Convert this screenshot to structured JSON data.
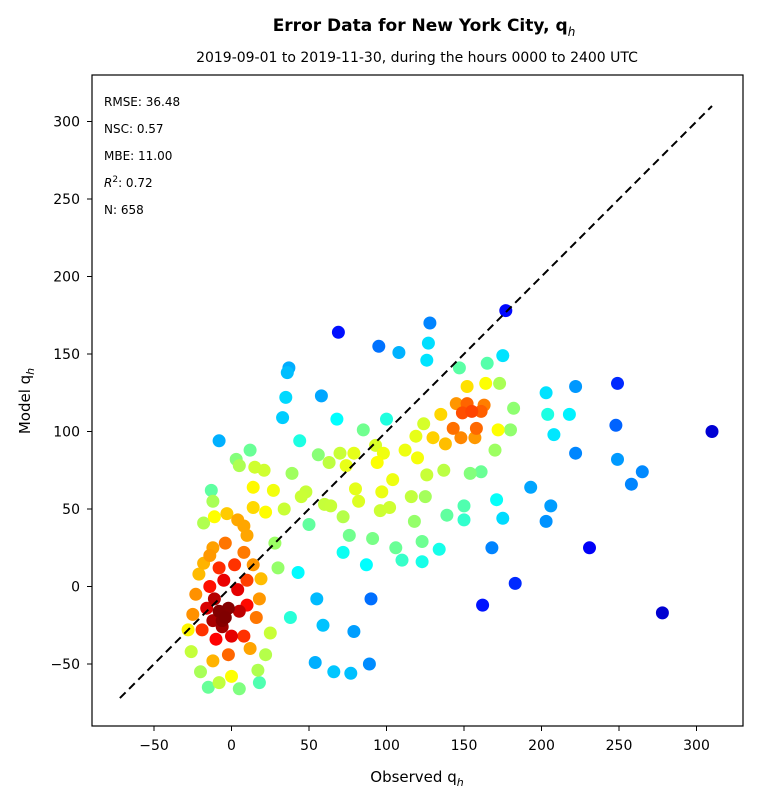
{
  "chart_data": {
    "type": "scatter",
    "title": "Error Data for New York City, q",
    "title_subscript": "h",
    "subtitle": "2019-09-01 to 2019-11-30, during the hours 0000 to 2400 UTC",
    "xlabel": "Observed q",
    "xlabel_subscript": "h",
    "ylabel": "Model q",
    "ylabel_subscript": "h",
    "xlim": [
      -90,
      330
    ],
    "ylim": [
      -90,
      330
    ],
    "x_ticks": [
      "−50",
      "0",
      "50",
      "100",
      "150",
      "200",
      "250",
      "300"
    ],
    "y_ticks": [
      "−50",
      "0",
      "50",
      "100",
      "150",
      "200",
      "250",
      "300"
    ],
    "reference_line": {
      "x": [
        -72,
        310
      ],
      "y": [
        -72,
        310
      ],
      "style": "dashed",
      "color": "#000000"
    },
    "stats": [
      {
        "label": "RMSE",
        "value": "36.48"
      },
      {
        "label": "NSC",
        "value": "0.57"
      },
      {
        "label": "MBE",
        "value": "11.00"
      },
      {
        "label": "R",
        "superscript": "2",
        "value": "0.72"
      },
      {
        "label": "N",
        "value": "658"
      }
    ],
    "color_scale": "jet (point density)",
    "colors": {
      "low_density": "#00008b",
      "mid_density": "#00ffff",
      "high_density": "#8b0000"
    },
    "n_points": 658,
    "points": [
      [
        310,
        100
      ],
      [
        278,
        -17
      ],
      [
        265,
        74
      ],
      [
        258,
        66
      ],
      [
        249,
        131
      ],
      [
        249,
        82
      ],
      [
        248,
        104
      ],
      [
        231,
        25
      ],
      [
        222,
        129
      ],
      [
        222,
        86
      ],
      [
        218,
        111
      ],
      [
        208,
        98
      ],
      [
        204,
        111
      ],
      [
        203,
        125
      ],
      [
        203,
        42
      ],
      [
        206,
        52
      ],
      [
        193,
        64
      ],
      [
        183,
        2
      ],
      [
        180,
        101
      ],
      [
        182,
        115
      ],
      [
        177,
        178
      ],
      [
        175,
        149
      ],
      [
        175,
        44
      ],
      [
        173,
        131
      ],
      [
        172,
        101
      ],
      [
        171,
        56
      ],
      [
        170,
        88
      ],
      [
        168,
        25
      ],
      [
        165,
        144
      ],
      [
        164,
        131
      ],
      [
        163,
        117
      ],
      [
        161,
        74
      ],
      [
        162,
        -12
      ],
      [
        161,
        113
      ],
      [
        158,
        102
      ],
      [
        157,
        96
      ],
      [
        155,
        113
      ],
      [
        154,
        73
      ],
      [
        152,
        118
      ],
      [
        152,
        129
      ],
      [
        150,
        43
      ],
      [
        150,
        52
      ],
      [
        149,
        112
      ],
      [
        148,
        96
      ],
      [
        147,
        141
      ],
      [
        145,
        118
      ],
      [
        143,
        102
      ],
      [
        139,
        46
      ],
      [
        138,
        92
      ],
      [
        137,
        75
      ],
      [
        135,
        111
      ],
      [
        134,
        24
      ],
      [
        130,
        96
      ],
      [
        127,
        157
      ],
      [
        128,
        170
      ],
      [
        126,
        72
      ],
      [
        125,
        58
      ],
      [
        126,
        146
      ],
      [
        124,
        105
      ],
      [
        123,
        29
      ],
      [
        123,
        16
      ],
      [
        120,
        83
      ],
      [
        119,
        97
      ],
      [
        118,
        42
      ],
      [
        116,
        58
      ],
      [
        112,
        88
      ],
      [
        110,
        17
      ],
      [
        108,
        151
      ],
      [
        106,
        25
      ],
      [
        104,
        69
      ],
      [
        102,
        51
      ],
      [
        100,
        108
      ],
      [
        98,
        86
      ],
      [
        97,
        61
      ],
      [
        95,
        155
      ],
      [
        96,
        49
      ],
      [
        94,
        80
      ],
      [
        93,
        91
      ],
      [
        91,
        31
      ],
      [
        90,
        -8
      ],
      [
        89,
        -50
      ],
      [
        85,
        101
      ],
      [
        87,
        14
      ],
      [
        82,
        55
      ],
      [
        80,
        63
      ],
      [
        79,
        86
      ],
      [
        79,
        -29
      ],
      [
        77,
        -56
      ],
      [
        76,
        33
      ],
      [
        74,
        78
      ],
      [
        72,
        22
      ],
      [
        72,
        45
      ],
      [
        70,
        86
      ],
      [
        69,
        164
      ],
      [
        68,
        108
      ],
      [
        66,
        -55
      ],
      [
        64,
        52
      ],
      [
        63,
        80
      ],
      [
        60,
        53
      ],
      [
        59,
        -25
      ],
      [
        58,
        123
      ],
      [
        56,
        85
      ],
      [
        54,
        -49
      ],
      [
        55,
        -8
      ],
      [
        50,
        40
      ],
      [
        48,
        61
      ],
      [
        45,
        58
      ],
      [
        44,
        94
      ],
      [
        39,
        73
      ],
      [
        37,
        141
      ],
      [
        36,
        138
      ],
      [
        35,
        122
      ],
      [
        34,
        50
      ],
      [
        33,
        109
      ],
      [
        27,
        62
      ],
      [
        22,
        48
      ],
      [
        21,
        75
      ],
      [
        15,
        77
      ],
      [
        14,
        64
      ],
      [
        12,
        88
      ],
      [
        10,
        33
      ],
      [
        5,
        78
      ],
      [
        3,
        82
      ],
      [
        -8,
        94
      ],
      [
        -12,
        55
      ],
      [
        -13,
        62
      ],
      [
        -11,
        45
      ],
      [
        -3,
        47
      ],
      [
        4,
        43
      ],
      [
        8,
        39
      ],
      [
        -18,
        41
      ],
      [
        14,
        51
      ],
      [
        18,
        -62
      ],
      [
        17,
        -54
      ],
      [
        28,
        28
      ],
      [
        30,
        12
      ],
      [
        38,
        -20
      ],
      [
        43,
        9
      ],
      [
        25,
        -30
      ],
      [
        22,
        -44
      ],
      [
        -18,
        15
      ],
      [
        -12,
        25
      ],
      [
        -21,
        8
      ],
      [
        -23,
        -5
      ],
      [
        -25,
        -18
      ],
      [
        -28,
        -28
      ],
      [
        -26,
        -42
      ],
      [
        -20,
        -55
      ],
      [
        -15,
        -65
      ],
      [
        -8,
        -62
      ],
      [
        0,
        -58
      ],
      [
        5,
        -66
      ],
      [
        12,
        -40
      ],
      [
        16,
        -20
      ],
      [
        18,
        -8
      ],
      [
        19,
        5
      ],
      [
        14,
        14
      ],
      [
        8,
        22
      ],
      [
        -4,
        28
      ],
      [
        -14,
        20
      ],
      [
        -19,
        -28
      ],
      [
        -12,
        -48
      ],
      [
        -2,
        -44
      ],
      [
        8,
        -32
      ],
      [
        10,
        -12
      ],
      [
        10,
        4
      ],
      [
        2,
        14
      ],
      [
        -8,
        12
      ],
      [
        -14,
        0
      ],
      [
        -16,
        -14
      ],
      [
        -10,
        -34
      ],
      [
        0,
        -32
      ],
      [
        5,
        -16
      ],
      [
        4,
        -2
      ],
      [
        -5,
        4
      ],
      [
        -11,
        -8
      ],
      [
        -12,
        -22
      ],
      [
        -6,
        -26
      ],
      [
        -2,
        -14
      ],
      [
        -8,
        -16
      ],
      [
        -4,
        -20
      ],
      [
        -6,
        -22
      ]
    ]
  }
}
